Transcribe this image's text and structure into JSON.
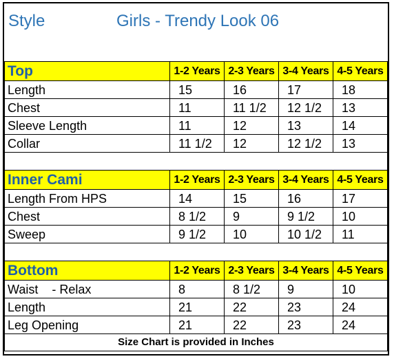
{
  "title": {
    "style_label": "Style",
    "name": "Girls  - Trendy Look 06"
  },
  "sizes": [
    "1-2 Years",
    "2-3 Years",
    "3-4 Years",
    "4-5 Years"
  ],
  "sections": [
    {
      "name": "Top",
      "rows": [
        {
          "label": "Length",
          "values": [
            "15",
            "16",
            "17",
            "18"
          ]
        },
        {
          "label": "Chest",
          "values": [
            "11",
            "11 1/2",
            "12 1/2",
            "13"
          ]
        },
        {
          "label": "Sleeve Length",
          "values": [
            "11",
            "12",
            "13",
            "14"
          ]
        },
        {
          "label": "Collar",
          "values": [
            "11 1/2",
            "12",
            "12 1/2",
            "13"
          ]
        }
      ]
    },
    {
      "name": "Inner Cami",
      "rows": [
        {
          "label": "Length  From HPS",
          "values": [
            "14",
            "15",
            "16",
            "17"
          ]
        },
        {
          "label": "Chest",
          "values": [
            "8 1/2",
            "9",
            "9 1/2",
            "10"
          ]
        },
        {
          "label": "Sweep",
          "values": [
            "9 1/2",
            "10",
            "10 1/2",
            "11"
          ]
        }
      ]
    },
    {
      "name": "Bottom",
      "rows": [
        {
          "label": "Waist    - Relax",
          "values": [
            "8",
            "8 1/2",
            "9",
            "10"
          ]
        },
        {
          "label": "Length",
          "values": [
            "21",
            "22",
            "23",
            "24"
          ]
        },
        {
          "label": "Leg Opening",
          "values": [
            "21",
            "22",
            "23",
            "24"
          ]
        }
      ]
    }
  ],
  "footer": "Size Chart is provided in Inches",
  "colors": {
    "header_fill": "#ffff00",
    "title_blue": "#2e75b6",
    "section_blue": "#1f5fa8"
  }
}
